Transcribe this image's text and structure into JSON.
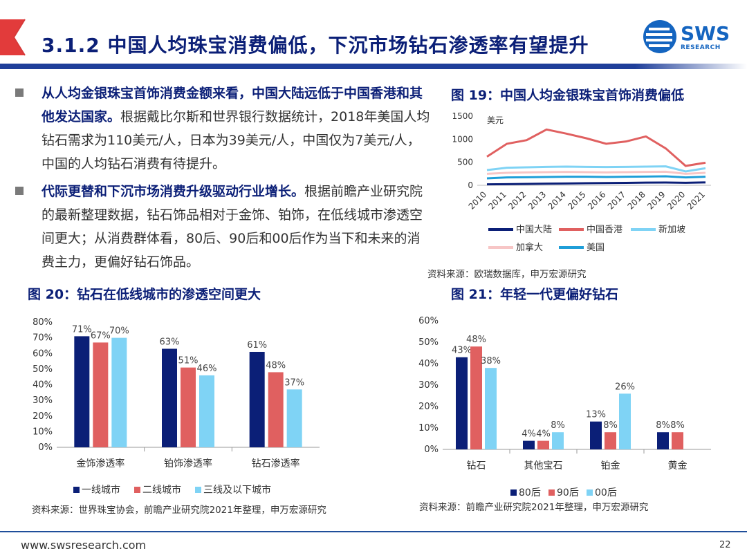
{
  "header": {
    "title": "3.1.2 中国人均珠宝消费偏低，下沉市场钻石渗透率有望提升",
    "logo_text": "SWS",
    "logo_sub": "RESEARCH"
  },
  "bullets": [
    {
      "bold": "从人均金银珠宝首饰消费金额来看，中国大陆远低于中国香港和其他发达国家。",
      "text": "根据戴比尔斯和世界银行数据统计，2018年美国人均钻石需求为110美元/人，日本为39美元/人，中国仅为7美元/人，中国的人均钻石消费有待提升。"
    },
    {
      "bold": "代际更替和下沉市场消费升级驱动行业增长。",
      "text": "根据前瞻产业研究院的最新整理数据，钻石饰品相对于金饰、铂饰，在低线城市渗透空间更大；从消费群体看，80后、90后和00后作为当下和未来的消费主力，更偏好钻石饰品。"
    }
  ],
  "fig19": {
    "title": "图 19：中国人均金银珠宝首饰消费偏低",
    "source": "资料来源：欧瑞数据库，申万宏源研究"
  },
  "fig20": {
    "title": "图 20：钻石在低线城市的渗透空间更大",
    "source": "资料来源：世界珠宝协会，前瞻产业研究院2021年整理，申万宏源研究"
  },
  "fig21": {
    "title": "图 21：年轻一代更偏好钻石",
    "source": "资料来源：前瞻产业研究院2021年整理，申万宏源研究"
  },
  "footer": {
    "url": "www.swsresearch.com",
    "page": "22"
  },
  "chart_data": [
    {
      "id": "fig19",
      "type": "line",
      "ylabel": "美元",
      "ylim": [
        0,
        1500
      ],
      "yticks": [
        "0",
        "500",
        "1000",
        "1500"
      ],
      "x": [
        "2010",
        "2011",
        "2012",
        "2013",
        "2014",
        "2015",
        "2016",
        "2017",
        "2018",
        "2019",
        "2020",
        "2021"
      ],
      "legend_position": "bottom",
      "series": [
        {
          "name": "中国大陆",
          "color": "#0b1f77",
          "values": [
            20,
            25,
            30,
            35,
            40,
            45,
            48,
            52,
            58,
            60,
            55,
            62
          ]
        },
        {
          "name": "中国香港",
          "color": "#e06060",
          "values": [
            620,
            900,
            980,
            1210,
            1120,
            1020,
            900,
            950,
            1060,
            800,
            420,
            490
          ]
        },
        {
          "name": "新加坡",
          "color": "#7fd3f5",
          "values": [
            330,
            380,
            390,
            400,
            405,
            400,
            395,
            400,
            405,
            410,
            300,
            370
          ]
        },
        {
          "name": "加拿大",
          "color": "#f7c6c6",
          "values": [
            250,
            270,
            280,
            285,
            290,
            285,
            280,
            285,
            290,
            295,
            250,
            270
          ]
        },
        {
          "name": "美国",
          "color": "#1f9ed8",
          "values": [
            150,
            170,
            175,
            180,
            185,
            185,
            180,
            185,
            190,
            195,
            170,
            185
          ]
        }
      ]
    },
    {
      "id": "fig20",
      "type": "bar",
      "categories": [
        "金饰渗透率",
        "铂饰渗透率",
        "钻石渗透率"
      ],
      "ylim": [
        0,
        80
      ],
      "yticks": [
        "0%",
        "10%",
        "20%",
        "30%",
        "40%",
        "50%",
        "60%",
        "70%",
        "80%"
      ],
      "legend_position": "bottom",
      "series": [
        {
          "name": "一线城市",
          "color": "#0b1f77",
          "values": [
            71,
            63,
            61
          ],
          "labels": [
            "71%",
            "63%",
            "61%"
          ]
        },
        {
          "name": "二线城市",
          "color": "#e06060",
          "values": [
            67,
            51,
            48
          ],
          "labels": [
            "67%",
            "51%",
            "48%"
          ]
        },
        {
          "name": "三线及以下城市",
          "color": "#7fd3f5",
          "values": [
            70,
            46,
            37
          ],
          "labels": [
            "70%",
            "46%",
            "37%"
          ]
        }
      ]
    },
    {
      "id": "fig21",
      "type": "bar",
      "categories": [
        "钻石",
        "其他宝石",
        "铂金",
        "黄金"
      ],
      "ylim": [
        0,
        60
      ],
      "yticks": [
        "0%",
        "10%",
        "20%",
        "30%",
        "40%",
        "50%",
        "60%"
      ],
      "legend_position": "bottom",
      "series": [
        {
          "name": "80后",
          "color": "#0b1f77",
          "values": [
            43,
            4,
            13,
            8
          ],
          "labels": [
            "43%",
            "4%",
            "13%",
            "8%"
          ]
        },
        {
          "name": "90后",
          "color": "#e06060",
          "values": [
            48,
            4,
            8,
            8
          ],
          "labels": [
            "48%",
            "4%",
            "8%",
            "8%"
          ]
        },
        {
          "name": "00后",
          "color": "#7fd3f5",
          "values": [
            38,
            8,
            26,
            null
          ],
          "labels": [
            "38%",
            "8%",
            "26%",
            ""
          ]
        }
      ]
    }
  ]
}
